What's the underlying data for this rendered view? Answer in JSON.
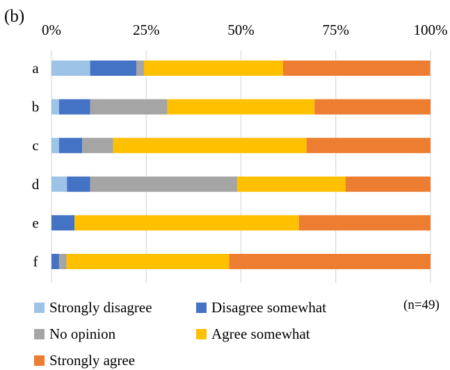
{
  "panel_label": "(b)",
  "note": "(n=49)",
  "chart_data": {
    "type": "bar",
    "orientation": "horizontal",
    "stacked": true,
    "normalized": true,
    "categories": [
      "a",
      "b",
      "c",
      "d",
      "e",
      "f"
    ],
    "xlim": [
      0,
      100
    ],
    "tick_values": [
      0,
      25,
      50,
      75,
      100
    ],
    "tick_labels": [
      "0%",
      "25%",
      "50%",
      "75%",
      "100%"
    ],
    "x_axis_position": "top",
    "grid": "vertical",
    "legend_position": "bottom",
    "series": [
      {
        "name": "Strongly disagree",
        "color": "#9DC3E6",
        "values": [
          10.2,
          2.0,
          2.0,
          4.1,
          0.0,
          0.0
        ]
      },
      {
        "name": "Disagree somewhat",
        "color": "#4472C4",
        "values": [
          12.2,
          8.2,
          6.1,
          6.1,
          6.1,
          2.0
        ]
      },
      {
        "name": "No opinion",
        "color": "#A5A5A5",
        "values": [
          2.0,
          20.4,
          8.2,
          38.8,
          0.0,
          2.0
        ]
      },
      {
        "name": "Agree somewhat",
        "color": "#FFC000",
        "values": [
          36.7,
          38.8,
          51.0,
          28.6,
          59.2,
          42.9
        ]
      },
      {
        "name": "Strongly agree",
        "color": "#ED7D31",
        "values": [
          38.8,
          30.6,
          32.7,
          22.4,
          34.7,
          53.1
        ]
      }
    ]
  }
}
